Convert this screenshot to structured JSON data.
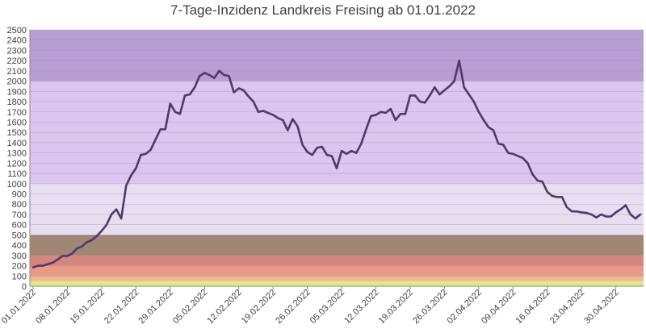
{
  "chart_data": {
    "type": "line",
    "title": "7-Tage-Inzidenz Landkreis Freising ab 01.01.2022",
    "xlabel": "",
    "ylabel": "",
    "ylim": [
      0,
      2500
    ],
    "y_ticks": [
      0,
      100,
      200,
      300,
      400,
      500,
      600,
      700,
      800,
      900,
      1000,
      1100,
      1200,
      1300,
      1400,
      1500,
      1600,
      1700,
      1800,
      1900,
      2000,
      2100,
      2200,
      2300,
      2400,
      2500
    ],
    "x_tick_labels": [
      "01.01.2022",
      "08.01.2022",
      "15.01.2022",
      "22.01.2022",
      "29.01.2022",
      "05.02.2022",
      "12.02.2022",
      "19.02.2022",
      "26.02.2022",
      "05.03.2022",
      "12.03.2022",
      "19.03.2022",
      "26.03.2022",
      "02.04.2022",
      "09.04.2022",
      "16.04.2022",
      "23.04.2022",
      "30.04.2022"
    ],
    "grid": true,
    "legend": "none",
    "bands": [
      {
        "from": 0,
        "to": 35,
        "color": "#d4ee8c"
      },
      {
        "from": 35,
        "to": 50,
        "color": "#f2e08a"
      },
      {
        "from": 50,
        "to": 100,
        "color": "#f0b98c"
      },
      {
        "from": 100,
        "to": 200,
        "color": "#e79a86"
      },
      {
        "from": 200,
        "to": 300,
        "color": "#d7867e"
      },
      {
        "from": 300,
        "to": 500,
        "color": "#a08673"
      },
      {
        "from": 500,
        "to": 1000,
        "color": "#e8def2"
      },
      {
        "from": 1000,
        "to": 2000,
        "color": "#dac6ee"
      },
      {
        "from": 2000,
        "to": 2500,
        "color": "#b99ed4"
      }
    ],
    "series": [
      {
        "line_color": "#4f3a66",
        "values": [
          185,
          200,
          200,
          215,
          230,
          260,
          295,
          295,
          320,
          370,
          390,
          430,
          450,
          490,
          540,
          600,
          700,
          750,
          660,
          980,
          1080,
          1150,
          1280,
          1290,
          1330,
          1430,
          1530,
          1530,
          1780,
          1700,
          1680,
          1860,
          1870,
          1940,
          2050,
          2080,
          2060,
          2030,
          2100,
          2060,
          2050,
          1890,
          1930,
          1910,
          1850,
          1800,
          1700,
          1710,
          1690,
          1670,
          1640,
          1620,
          1520,
          1630,
          1560,
          1380,
          1310,
          1280,
          1350,
          1360,
          1280,
          1270,
          1150,
          1320,
          1290,
          1320,
          1300,
          1390,
          1530,
          1660,
          1670,
          1700,
          1690,
          1730,
          1620,
          1680,
          1680,
          1860,
          1860,
          1800,
          1790,
          1860,
          1940,
          1870,
          1910,
          1950,
          2000,
          2200,
          1940,
          1870,
          1800,
          1700,
          1620,
          1550,
          1520,
          1390,
          1380,
          1300,
          1290,
          1270,
          1250,
          1200,
          1090,
          1030,
          1020,
          920,
          880,
          870,
          870,
          770,
          730,
          730,
          720,
          715,
          700,
          670,
          700,
          680,
          680,
          720,
          750,
          790,
          700,
          660,
          700
        ]
      }
    ]
  }
}
